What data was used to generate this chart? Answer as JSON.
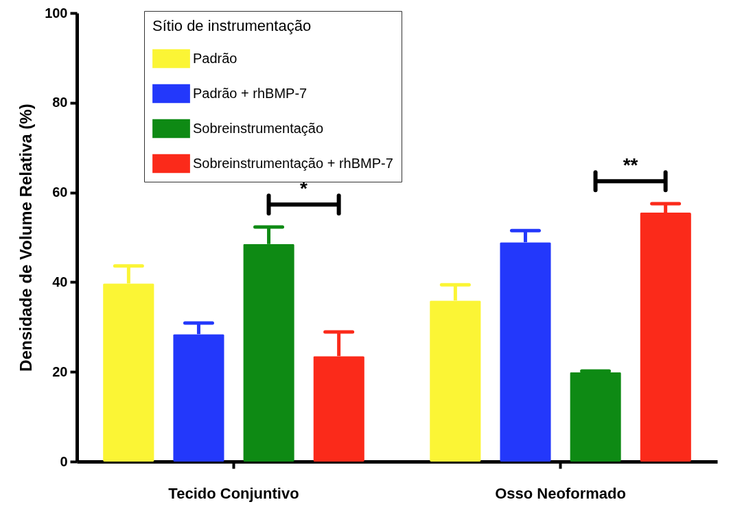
{
  "chart_data": {
    "type": "bar",
    "ylabel": "Densidade de Volume Relativa (%)",
    "legend_title": "Sítio de instrumentação",
    "categories": [
      "Tecido Conjuntivo",
      "Osso Neoformado"
    ],
    "series": [
      {
        "name": "Padrão",
        "color": "#fbf535",
        "values": [
          39.7,
          35.9
        ],
        "errors": [
          [
            39.7,
            43.6
          ],
          [
            35.9,
            39.4
          ]
        ]
      },
      {
        "name": "Padrão + rhBMP-7",
        "color": "#2338fb",
        "values": [
          28.4,
          48.9
        ],
        "errors": [
          [
            28.4,
            30.9
          ],
          [
            48.9,
            51.5
          ]
        ]
      },
      {
        "name": "Sobreinstrumentação",
        "color": "#0e8a14",
        "values": [
          48.5,
          19.9
        ],
        "errors": [
          [
            48.5,
            52.3
          ],
          [
            19.9,
            20.2
          ]
        ]
      },
      {
        "name": "Sobreinstrumentação + rhBMP-7",
        "color": "#fb2a1a",
        "values": [
          23.5,
          55.5
        ],
        "errors": [
          [
            23.5,
            28.9
          ],
          [
            55.5,
            57.5
          ]
        ]
      }
    ],
    "ylim": [
      0,
      100
    ],
    "yticks": [
      0,
      20,
      40,
      60,
      80,
      100
    ],
    "grid": false,
    "legend": "top left",
    "annotations": [
      "*",
      "**"
    ]
  }
}
